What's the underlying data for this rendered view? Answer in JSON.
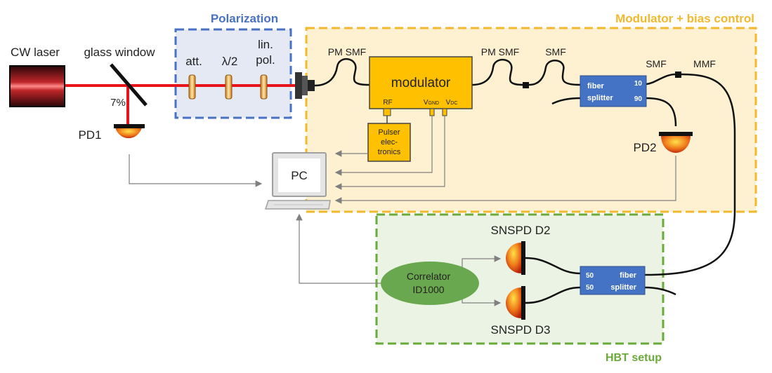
{
  "boxes": {
    "polarization": {
      "label": "Polarization",
      "color": "#4a72c4"
    },
    "modulator_bias": {
      "label": "Modulator + bias control",
      "color": "#f2b92e"
    },
    "hbt": {
      "label": "HBT setup",
      "color": "#6aaa3a"
    }
  },
  "laser": {
    "label": "CW laser"
  },
  "glass_window": {
    "label": "glass window",
    "reflection": "7%"
  },
  "optics": {
    "attenuator": "att.",
    "half_wave_plate": "λ/2",
    "polarizer_line1": "lin.",
    "polarizer_line2": "pol."
  },
  "fibers": {
    "pm_smf_1": "PM SMF",
    "pm_smf_2": "PM SMF",
    "smf_1": "SMF",
    "smf_2": "SMF",
    "mmf": "MMF"
  },
  "modulator": {
    "label": "modulator",
    "port_rf": "RF",
    "port_vgnd_main": "V",
    "port_vgnd_sub": "GND",
    "port_vdc_main": "V",
    "port_vdc_sub": "DC"
  },
  "pulser": {
    "line1": "Pulser",
    "line2": "elec-",
    "line3": "tronics"
  },
  "splitter_1": {
    "line1": "fiber",
    "line2": "splitter",
    "ratio_top": "10",
    "ratio_bottom": "90"
  },
  "splitter_2": {
    "line1": "fiber",
    "line2": "splitter",
    "ratio_top": "50",
    "ratio_bottom": "50"
  },
  "detectors": {
    "pd1": "PD1",
    "pd2": "PD2",
    "snspd_d2": "SNSPD D2",
    "snspd_d3": "SNSPD D3"
  },
  "pc": {
    "label": "PC"
  },
  "correlator": {
    "line1": "Correlator",
    "line2": "ID1000"
  },
  "colors": {
    "beam": "#e8141c",
    "device": "#ffc000",
    "splitter": "#4472c4",
    "correlator": "#6aa84f",
    "signal": "#808080"
  }
}
